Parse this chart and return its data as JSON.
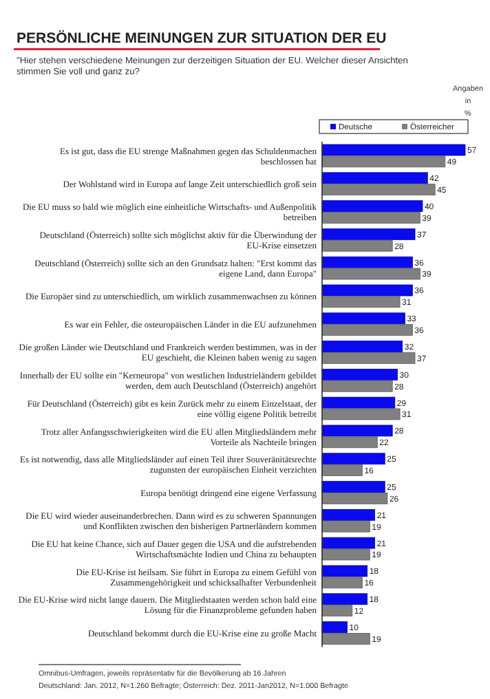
{
  "chart_data": {
    "type": "bar",
    "orientation": "horizontal",
    "title": "PERSÖNLICHE MEINUNGEN ZUR SITUATION DER EU",
    "subtitle": "\"Hier stehen verschiedene Meinungen zur derzeitigen Situation der EU. Welcher dieser Ansichten stimmen Sie voll und ganz zu?",
    "categories": [
      "Es ist gut, dass die EU strenge Maßnahmen gegen das Schuldenmachen beschlossen hat",
      "Der Wohlstand wird in Europa auf lange Zeit unterschiedlich groß sein",
      "Die EU muss so bald wie möglich eine einheitliche Wirtschafts- und Außenpolitik betreiben",
      "Deutschland (Österreich) sollte sich möglichst aktiv für die Überwindung der EU-Krise einsetzen",
      "Deutschland (Österreich) sollte sich an den Grundsatz halten: \"Erst kommt das eigene Land, dann Europa\"",
      "Die Europäer sind zu unterschiedlich, um wirklich zusammenwachsen zu können",
      "Es war ein Fehler, die osteuropäischen Länder in die EU aufzunehmen",
      "Die großen Länder wie Deutschland und Frankreich werden bestimmen, was in der EU geschieht, die Kleinen haben wenig zu sagen",
      "Innerhalb der EU sollte ein \"Kerneuropa\" von westlichen Industrieländern gebildet werden, dem auch Deutschland (Österreich) angehört",
      "Für Deutschland (Österreich) gibt es kein Zurück mehr zu einem Einzelstaat, der eine völlig eigene Politik betreibt",
      "Trotz aller Anfangsschwierigkeiten wird die EU allen Mitgliedsländern mehr Vorteile als Nachteile bringen",
      "Es ist notwendig, dass alle Mitgliedsländer auf einen Teil ihrer Souveränitätsrechte zugunsten der europäischen Einheit verzichten",
      "Europa benötigt dringend eine eigene Verfassung",
      "Die EU wird wieder auseinanderbrechen. Dann wird es zu schweren Spannungen und Konflikten zwischen den bisherigen Partnerländern kommen",
      "Die EU hat keine Chance, sich auf Dauer gegen die USA und die aufstrebenden Wirtschaftsmächte Indien und China zu behaupten",
      "Die EU-Krise ist heilsam. Sie führt in Europa zu einem Gefühl von Zusammengehörigkeit und schicksalhafter Verbundenheit",
      "Die EU-Krise wird nicht lange dauern. Die Mitgliedstaaten werden schon bald eine Lösung für die Finanzprobleme gefunden haben",
      "Deutschland bekommt durch die EU-Krise eine zu große Macht"
    ],
    "series": [
      {
        "name": "Deutsche",
        "color": "#0a0aee",
        "values": [
          57,
          42,
          40,
          37,
          36,
          36,
          33,
          32,
          30,
          29,
          28,
          25,
          25,
          21,
          21,
          18,
          18,
          10
        ]
      },
      {
        "name": "Österreicher",
        "color": "#808080",
        "values": [
          49,
          45,
          39,
          28,
          39,
          31,
          36,
          37,
          28,
          31,
          22,
          16,
          26,
          19,
          19,
          16,
          12,
          19
        ]
      }
    ],
    "data_labels": true,
    "legend": "top right",
    "annotations": [
      "Angaben in %",
      "Omnibus-Umfragen, jeweils repräsentativ für die Bevölkerung ab 16 Jahren",
      "Deutschland: Jan. 2012,  N=1.260 Befragte;  Österreich: Dez. 2011-Jan2012, N=1.000 Befragte"
    ]
  }
}
